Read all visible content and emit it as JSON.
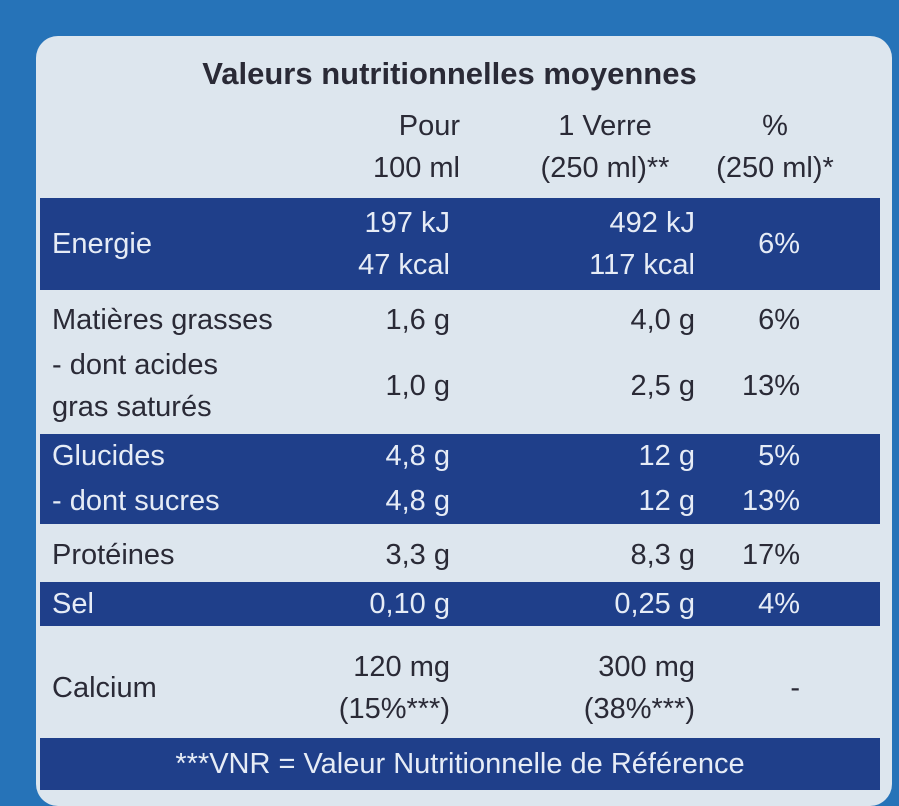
{
  "header": {
    "title": "Valeurs nutritionnelles moyennes"
  },
  "table": {
    "columns": [
      [
        "Pour",
        "100 ml"
      ],
      [
        "1 Verre",
        "(250 ml)**"
      ],
      [
        "%",
        "(250 ml)*"
      ]
    ],
    "rows": [
      {
        "label": [
          "Energie"
        ],
        "per_100ml": [
          "197 kJ",
          "47 kcal"
        ],
        "per_glass": [
          "492 kJ",
          "117 kcal"
        ],
        "percent": [
          "6%"
        ]
      },
      {
        "label": [
          "Matières grasses"
        ],
        "per_100ml": [
          "1,6 g"
        ],
        "per_glass": [
          "4,0 g"
        ],
        "percent": [
          "6%"
        ]
      },
      {
        "label": [
          "- dont acides",
          "gras saturés"
        ],
        "per_100ml": [
          "1,0 g"
        ],
        "per_glass": [
          "2,5 g"
        ],
        "percent": [
          "13%"
        ]
      },
      {
        "label": [
          "Glucides"
        ],
        "per_100ml": [
          "4,8 g"
        ],
        "per_glass": [
          "12 g"
        ],
        "percent": [
          "5%"
        ]
      },
      {
        "label": [
          "- dont sucres"
        ],
        "per_100ml": [
          "4,8 g"
        ],
        "per_glass": [
          "12 g"
        ],
        "percent": [
          "13%"
        ]
      },
      {
        "label": [
          "Protéines"
        ],
        "per_100ml": [
          "3,3 g"
        ],
        "per_glass": [
          "8,3 g"
        ],
        "percent": [
          "17%"
        ]
      },
      {
        "label": [
          "Sel"
        ],
        "per_100ml": [
          "0,10 g"
        ],
        "per_glass": [
          "0,25 g"
        ],
        "percent": [
          "4%"
        ]
      },
      {
        "label": [
          "Calcium"
        ],
        "per_100ml": [
          "120 mg",
          "(15%***)"
        ],
        "per_glass": [
          "300 mg",
          "(38%***)"
        ],
        "percent": [
          "-"
        ]
      }
    ]
  },
  "footer": {
    "note": "***VNR = Valeur Nutritionnelle de Référence"
  }
}
